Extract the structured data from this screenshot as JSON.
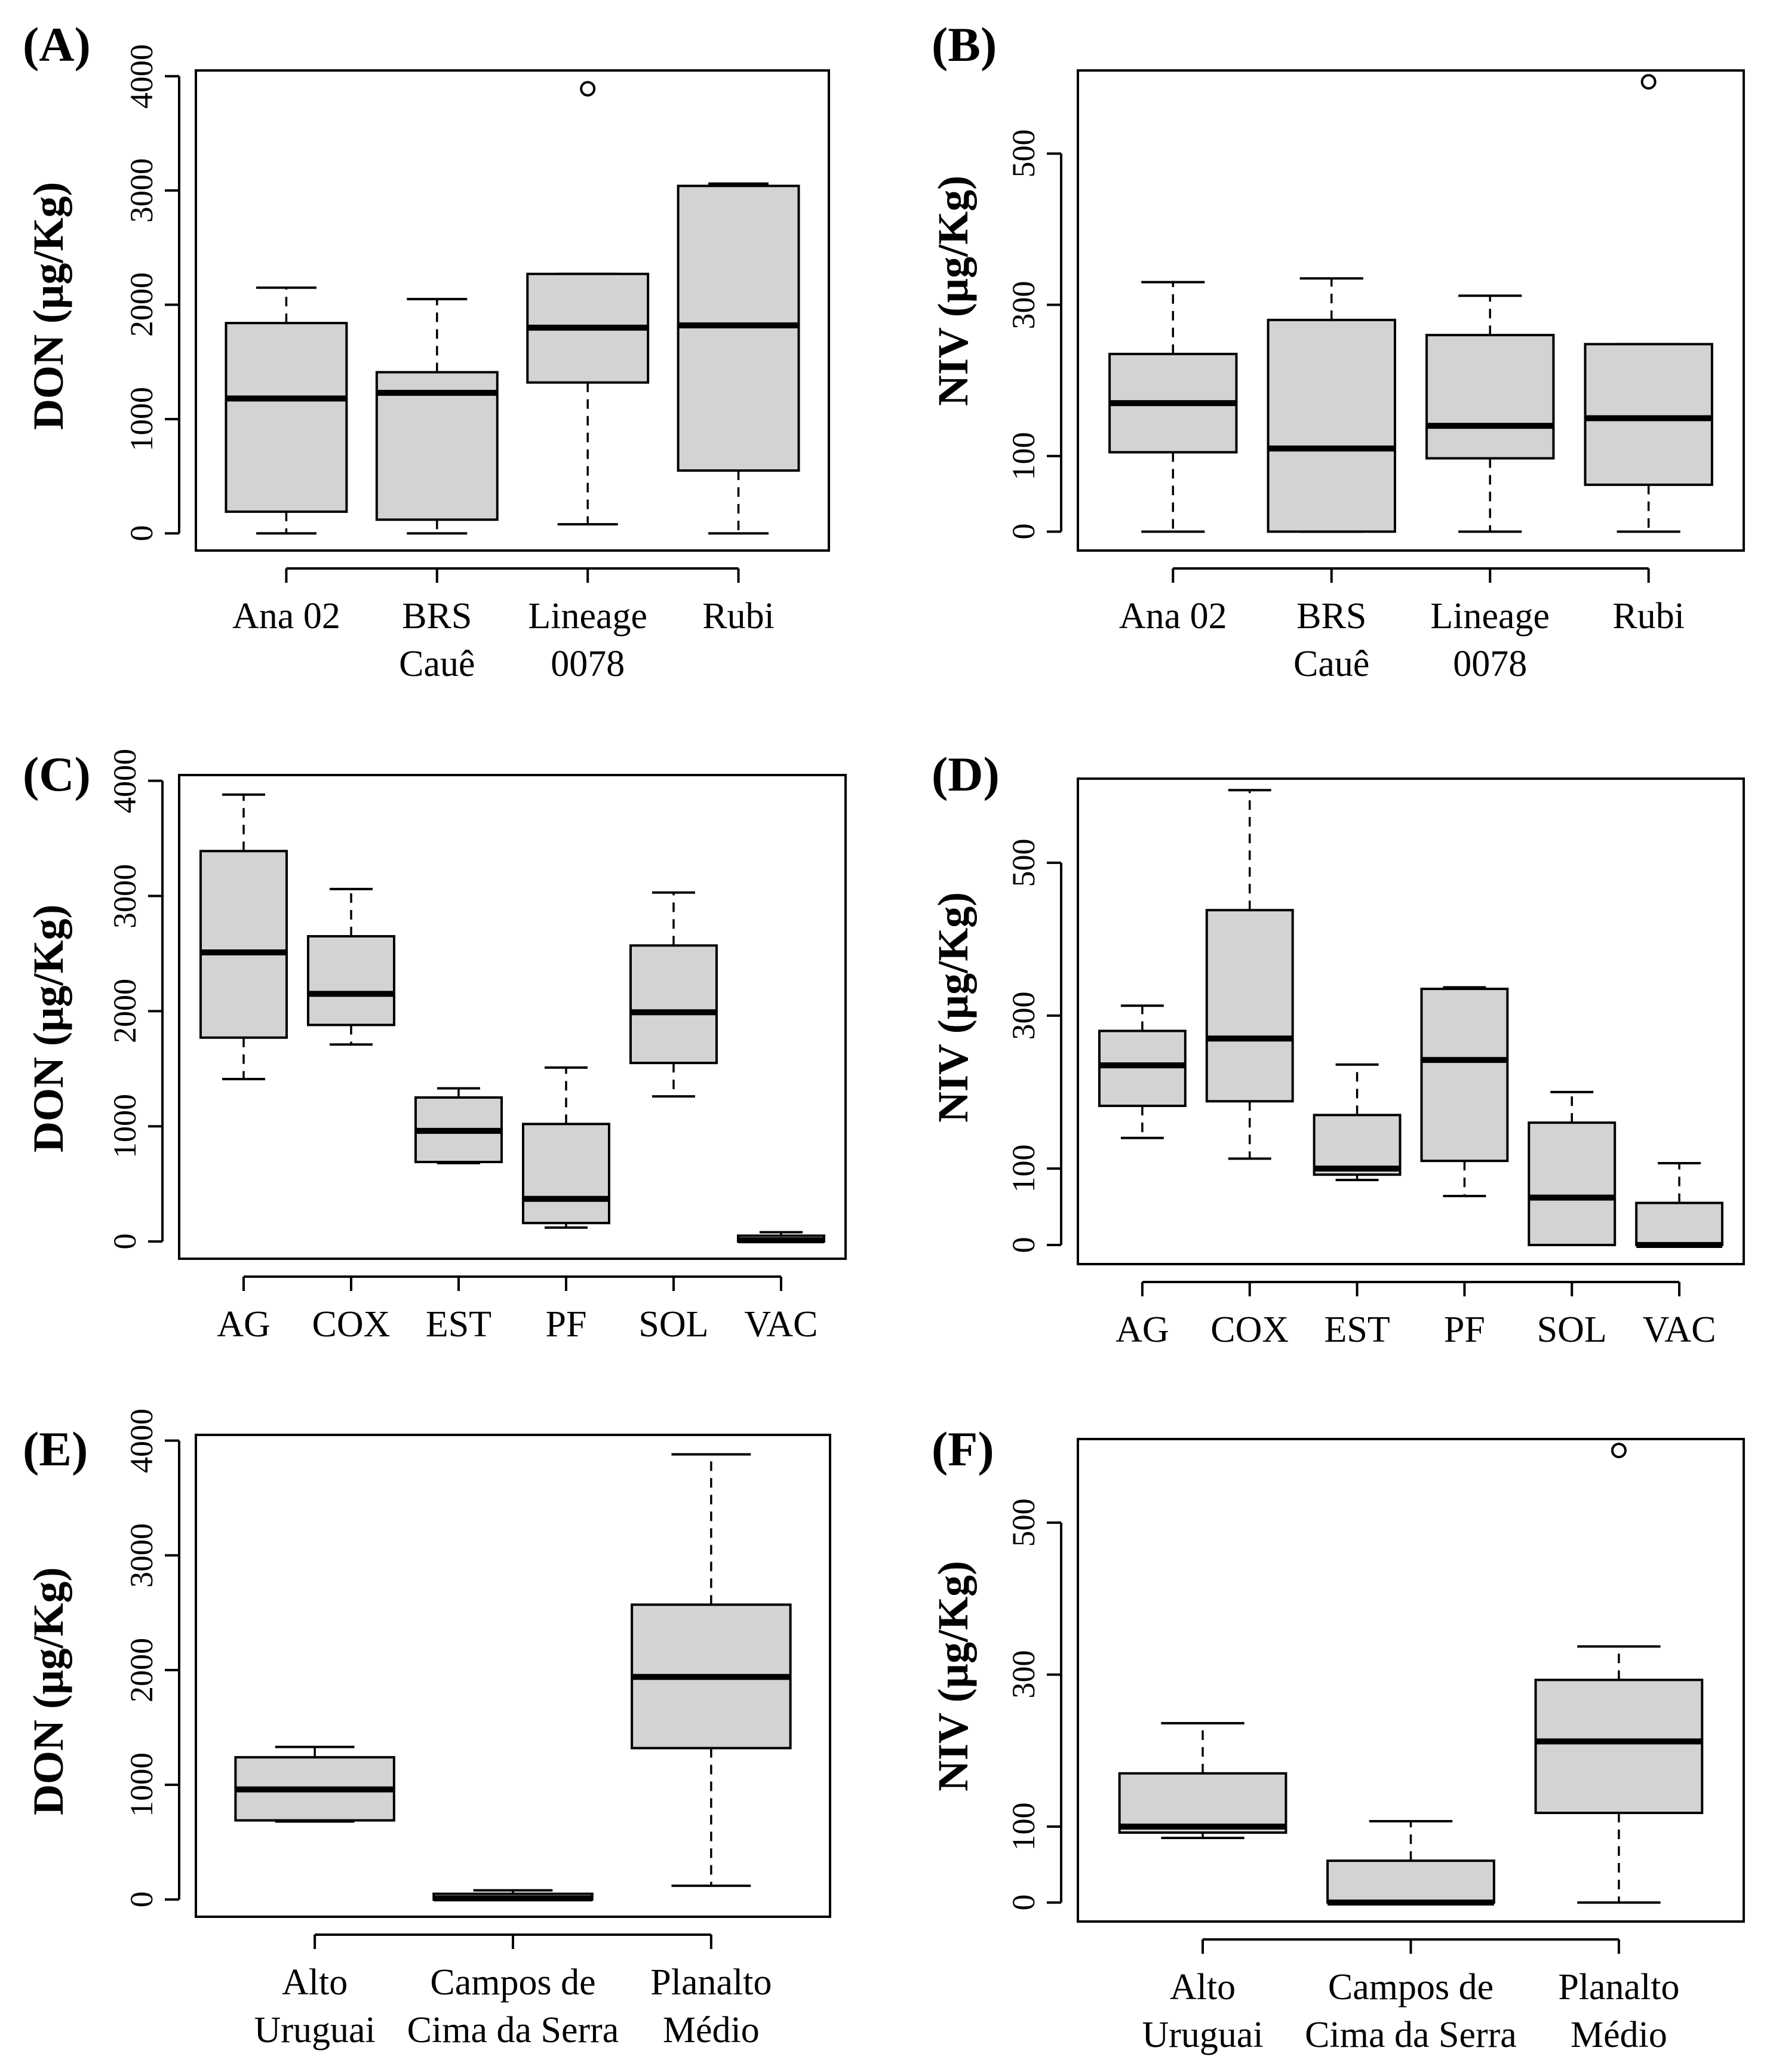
{
  "panels": [
    {
      "id": "A",
      "letter": "(A)",
      "ylabel": "DON (µg/Kg)"
    },
    {
      "id": "B",
      "letter": "(B)",
      "ylabel": "NIV (µg/Kg)"
    },
    {
      "id": "C",
      "letter": "(C)",
      "ylabel": "DON (µg/Kg)"
    },
    {
      "id": "D",
      "letter": "(D)",
      "ylabel": "NIV (µg/Kg)"
    },
    {
      "id": "E",
      "letter": "(E)",
      "ylabel": "DON (µg/Kg)"
    },
    {
      "id": "F",
      "letter": "(F)",
      "ylabel": "NIV (µg/Kg)"
    }
  ],
  "colors": {
    "box_fill": "#d3d3d3",
    "stroke": "#000000"
  },
  "chart_data": [
    {
      "id": "A",
      "type": "box",
      "title": "(A)",
      "ylabel": "DON (µg/Kg)",
      "ylim": [
        -150,
        4050
      ],
      "yticks": [
        0,
        1000,
        2000,
        3000,
        4000
      ],
      "categories": [
        [
          "Ana 02"
        ],
        [
          "BRS",
          "Cauê"
        ],
        [
          "Lineage",
          "0078"
        ],
        [
          "Rubi"
        ]
      ],
      "boxes": [
        {
          "whisker_low": 0,
          "q1": 190,
          "median": 1180,
          "q3": 1840,
          "whisker_high": 2150,
          "outliers": []
        },
        {
          "whisker_low": 0,
          "q1": 120,
          "median": 1230,
          "q3": 1410,
          "whisker_high": 2050,
          "outliers": []
        },
        {
          "whisker_low": 80,
          "q1": 1320,
          "median": 1800,
          "q3": 2270,
          "whisker_high": 2270,
          "outliers": [
            3890
          ]
        },
        {
          "whisker_low": 0,
          "q1": 550,
          "median": 1820,
          "q3": 3040,
          "whisker_high": 3060,
          "outliers": []
        }
      ]
    },
    {
      "id": "B",
      "type": "box",
      "title": "(B)",
      "ylabel": "NIV (µg/Kg)",
      "ylim": [
        -25,
        610
      ],
      "yticks": [
        0,
        100,
        300,
        500
      ],
      "categories": [
        [
          "Ana 02"
        ],
        [
          "BRS",
          "Cauê"
        ],
        [
          "Lineage",
          "0078"
        ],
        [
          "Rubi"
        ]
      ],
      "boxes": [
        {
          "whisker_low": 0,
          "q1": 105,
          "median": 170,
          "q3": 235,
          "whisker_high": 330,
          "outliers": []
        },
        {
          "whisker_low": 0,
          "q1": 0,
          "median": 110,
          "q3": 280,
          "whisker_high": 335,
          "outliers": []
        },
        {
          "whisker_low": 0,
          "q1": 97,
          "median": 140,
          "q3": 260,
          "whisker_high": 312,
          "outliers": []
        },
        {
          "whisker_low": 0,
          "q1": 62,
          "median": 150,
          "q3": 248,
          "whisker_high": 248,
          "outliers": [
            595
          ]
        }
      ]
    },
    {
      "id": "C",
      "type": "box",
      "title": "(C)",
      "ylabel": "DON (µg/Kg)",
      "ylim": [
        -150,
        4050
      ],
      "yticks": [
        0,
        1000,
        2000,
        3000,
        4000
      ],
      "categories": [
        [
          "AG"
        ],
        [
          "COX"
        ],
        [
          "EST"
        ],
        [
          "PF"
        ],
        [
          "SOL"
        ],
        [
          "VAC"
        ]
      ],
      "boxes": [
        {
          "whisker_low": 1410,
          "q1": 1770,
          "median": 2510,
          "q3": 3390,
          "whisker_high": 3880,
          "outliers": []
        },
        {
          "whisker_low": 1710,
          "q1": 1880,
          "median": 2150,
          "q3": 2650,
          "whisker_high": 3060,
          "outliers": []
        },
        {
          "whisker_low": 680,
          "q1": 690,
          "median": 960,
          "q3": 1250,
          "whisker_high": 1330,
          "outliers": []
        },
        {
          "whisker_low": 120,
          "q1": 160,
          "median": 370,
          "q3": 1020,
          "whisker_high": 1510,
          "outliers": []
        },
        {
          "whisker_low": 1260,
          "q1": 1550,
          "median": 1990,
          "q3": 2570,
          "whisker_high": 3030,
          "outliers": []
        },
        {
          "whisker_low": 0,
          "q1": 0,
          "median": 10,
          "q3": 50,
          "whisker_high": 80,
          "outliers": []
        }
      ]
    },
    {
      "id": "D",
      "type": "box",
      "title": "(D)",
      "ylabel": "NIV (µg/Kg)",
      "ylim": [
        -25,
        610
      ],
      "yticks": [
        0,
        100,
        300,
        500
      ],
      "categories": [
        [
          "AG"
        ],
        [
          "COX"
        ],
        [
          "EST"
        ],
        [
          "PF"
        ],
        [
          "SOL"
        ],
        [
          "VAC"
        ]
      ],
      "boxes": [
        {
          "whisker_low": 140,
          "q1": 182,
          "median": 235,
          "q3": 280,
          "whisker_high": 313,
          "outliers": []
        },
        {
          "whisker_low": 113,
          "q1": 188,
          "median": 270,
          "q3": 438,
          "whisker_high": 595,
          "outliers": []
        },
        {
          "whisker_low": 85,
          "q1": 92,
          "median": 100,
          "q3": 170,
          "whisker_high": 236,
          "outliers": []
        },
        {
          "whisker_low": 64,
          "q1": 110,
          "median": 242,
          "q3": 335,
          "whisker_high": 337,
          "outliers": []
        },
        {
          "whisker_low": 0,
          "q1": 0,
          "median": 62,
          "q3": 160,
          "whisker_high": 200,
          "outliers": []
        },
        {
          "whisker_low": 0,
          "q1": 0,
          "median": 0,
          "q3": 55,
          "whisker_high": 107,
          "outliers": []
        }
      ]
    },
    {
      "id": "E",
      "type": "box",
      "title": "(E)",
      "ylabel": "DON (µg/Kg)",
      "ylim": [
        -150,
        4050
      ],
      "yticks": [
        0,
        1000,
        2000,
        3000,
        4000
      ],
      "categories": [
        [
          "Alto",
          "Uruguai"
        ],
        [
          "Campos de",
          "Cima da Serra"
        ],
        [
          "Planalto",
          "Médio"
        ]
      ],
      "boxes": [
        {
          "whisker_low": 680,
          "q1": 690,
          "median": 960,
          "q3": 1240,
          "whisker_high": 1330,
          "outliers": []
        },
        {
          "whisker_low": 0,
          "q1": 0,
          "median": 10,
          "q3": 50,
          "whisker_high": 80,
          "outliers": []
        },
        {
          "whisker_low": 120,
          "q1": 1320,
          "median": 1940,
          "q3": 2570,
          "whisker_high": 3880,
          "outliers": []
        }
      ]
    },
    {
      "id": "F",
      "type": "box",
      "title": "(F)",
      "ylabel": "NIV (µg/Kg)",
      "ylim": [
        -25,
        610
      ],
      "yticks": [
        0,
        100,
        300,
        500
      ],
      "categories": [
        [
          "Alto",
          "Uruguai"
        ],
        [
          "Campos de",
          "Cima da Serra"
        ],
        [
          "Planalto",
          "Médio"
        ]
      ],
      "boxes": [
        {
          "whisker_low": 85,
          "q1": 92,
          "median": 100,
          "q3": 170,
          "whisker_high": 236,
          "outliers": []
        },
        {
          "whisker_low": 0,
          "q1": 0,
          "median": 0,
          "q3": 55,
          "whisker_high": 107,
          "outliers": []
        },
        {
          "whisker_low": 0,
          "q1": 118,
          "median": 212,
          "q3": 293,
          "whisker_high": 337,
          "outliers": [
            595
          ]
        }
      ]
    }
  ]
}
